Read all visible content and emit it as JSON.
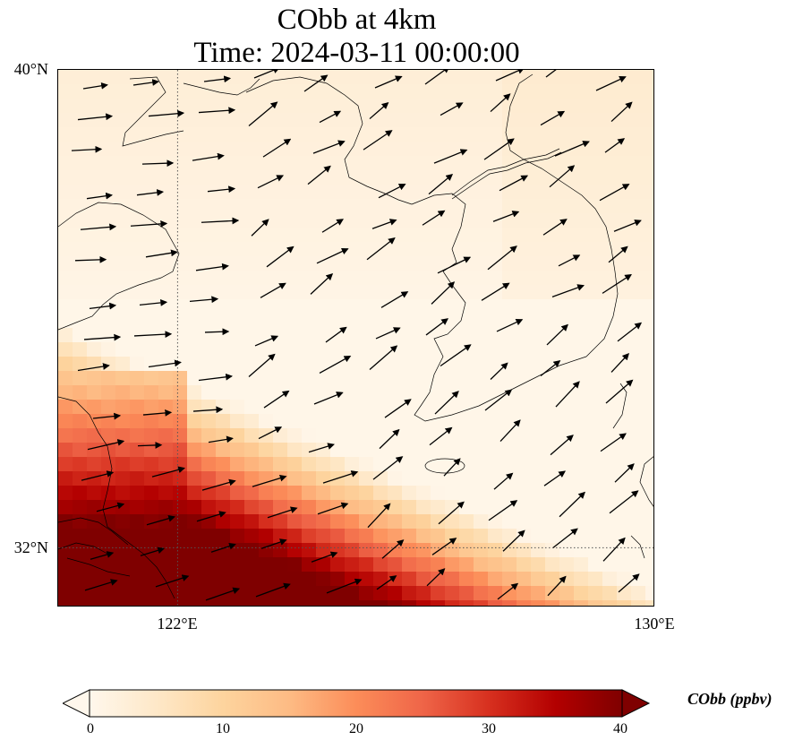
{
  "title": {
    "line1": "CObb at 4km",
    "line2": "Time: 2024-03-11 00:00:00"
  },
  "map": {
    "extent": {
      "lon_min": 120,
      "lon_max": 130,
      "lat_min": 31,
      "lat_max": 40
    },
    "lat_labels": [
      {
        "value": 40,
        "text": "40°N"
      },
      {
        "value": 32,
        "text": "32°N"
      }
    ],
    "lon_labels": [
      {
        "value": 122,
        "text": "122°E"
      },
      {
        "value": 130,
        "text": "130°E"
      }
    ],
    "gridlines": {
      "lons": [
        122
      ],
      "lats": [
        32
      ],
      "style": "dotted"
    },
    "field": {
      "variable": "CObb",
      "units": "ppbv",
      "description_pattern": "high concentration plume in south-west, diagonal front toward north-east, low values over Korea and Yellow Sea"
    },
    "vectors": "wind arrows, predominantly westerly to south-westerly"
  },
  "colorbar": {
    "min": 0,
    "max": 40,
    "ticks": [
      0,
      10,
      20,
      30,
      40
    ],
    "tick_labels": [
      "0",
      "10",
      "20",
      "30",
      "40"
    ],
    "extend": "both",
    "colormap": "OrRd",
    "colors": [
      "#fff7ec",
      "#fee8c8",
      "#fdd49e",
      "#fdbb84",
      "#fc8d59",
      "#ef6548",
      "#d7301f",
      "#b30000",
      "#7f0000"
    ],
    "label": "CObb (ppbv)"
  }
}
